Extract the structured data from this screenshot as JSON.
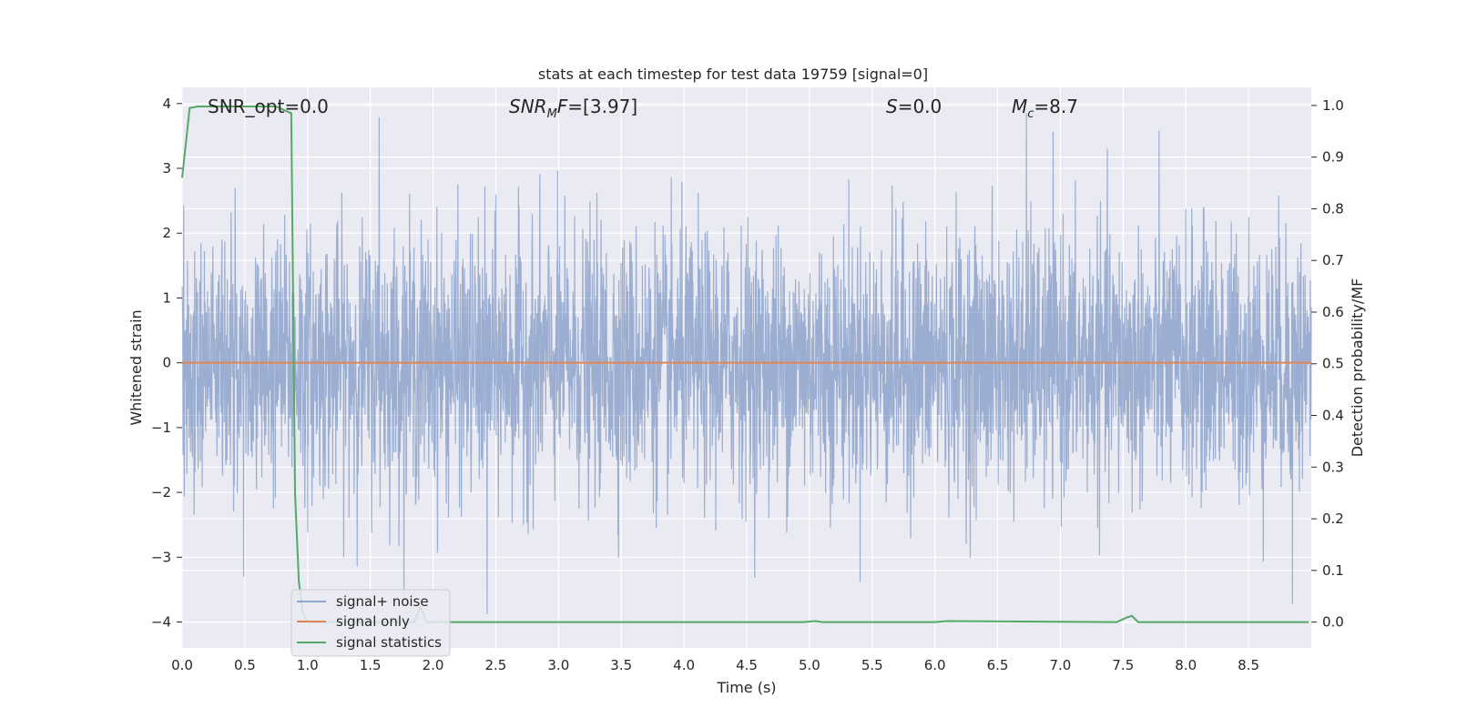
{
  "chart_data": {
    "type": "line",
    "title": "stats at each timestep for test data 19759 [signal=0]",
    "xlabel": "Time (s)",
    "ylabel": "Whitened strain",
    "y2label": "Detection probability/MF",
    "xlim": [
      0,
      9.0
    ],
    "ylim": [
      -4.4,
      4.25
    ],
    "y2lim": [
      -0.05,
      1.035
    ],
    "x_ticks": [
      0.0,
      0.5,
      1.0,
      1.5,
      2.0,
      2.5,
      3.0,
      3.5,
      4.0,
      4.5,
      5.0,
      5.5,
      6.0,
      6.5,
      7.0,
      7.5,
      8.0,
      8.5
    ],
    "x_tick_labels": [
      "0.0",
      "0.5",
      "1.0",
      "1.5",
      "2.0",
      "2.5",
      "3.0",
      "3.5",
      "4.0",
      "4.5",
      "5.0",
      "5.5",
      "6.0",
      "6.5",
      "7.0",
      "7.5",
      "8.0",
      "8.5"
    ],
    "y_ticks": [
      -4,
      -3,
      -2,
      -1,
      0,
      1,
      2,
      3,
      4
    ],
    "y_tick_labels": [
      "−4",
      "−3",
      "−2",
      "−1",
      "0",
      "1",
      "2",
      "3",
      "4"
    ],
    "y2_ticks": [
      0.0,
      0.1,
      0.2,
      0.3,
      0.4,
      0.5,
      0.6,
      0.7,
      0.8,
      0.9,
      1.0
    ],
    "y2_tick_labels": [
      "0.0",
      "0.1",
      "0.2",
      "0.3",
      "0.4",
      "0.5",
      "0.6",
      "0.7",
      "0.8",
      "0.9",
      "1.0"
    ],
    "grid": true,
    "legend_position": "lower-left",
    "annotations": {
      "snr_opt": "SNR_opt=0.0",
      "snr_mf_base": "SNR",
      "snr_mf_sub": "M",
      "snr_mf_rest": "F=[3.97]",
      "s_italic": "S",
      "s_rest": "=0.0",
      "mc_base": "M",
      "mc_sub": "c",
      "mc_rest": "=8.7"
    },
    "series": [
      {
        "name": "signal+ noise",
        "axis": "left",
        "color": "#4c72b0",
        "style": "dense noise, approx. std 1, extremes around ±3.9",
        "sample_extremes": [
          {
            "x": 1.57,
            "y": 3.78
          },
          {
            "x": 6.73,
            "y": 3.85
          },
          {
            "x": 8.85,
            "y": -3.72
          },
          {
            "x": 2.43,
            "y": -3.88
          },
          {
            "x": 0.49,
            "y": -3.3
          }
        ]
      },
      {
        "name": "signal only",
        "axis": "left",
        "color": "#dd8452",
        "x": [
          0.0,
          9.0
        ],
        "y": [
          0.0,
          0.0
        ]
      },
      {
        "name": "signal statistics",
        "axis": "right",
        "color": "#55a868",
        "x": [
          0.0,
          0.06,
          0.12,
          0.5,
          0.75,
          0.82,
          0.87,
          0.9,
          0.93,
          0.96,
          1.0,
          1.5,
          1.85,
          1.9,
          1.95,
          2.0,
          2.5,
          4.95,
          5.05,
          5.1,
          6.0,
          6.1,
          7.45,
          7.52,
          7.57,
          7.62,
          8.98
        ],
        "y": [
          0.86,
          0.995,
          0.998,
          0.998,
          0.998,
          0.99,
          0.985,
          0.25,
          0.08,
          0.02,
          0.0,
          0.0,
          0.0,
          0.03,
          0.0,
          0.0,
          0.0,
          0.0,
          0.002,
          0.0,
          0.0,
          0.002,
          0.0,
          0.008,
          0.012,
          0.0,
          0.0
        ]
      }
    ]
  }
}
